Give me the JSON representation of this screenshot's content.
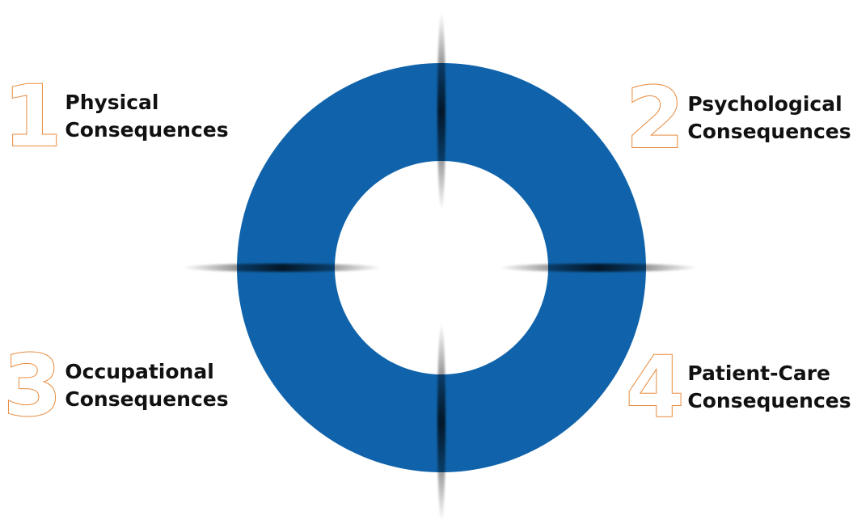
{
  "accent_color": "#e8893a",
  "ring_color": "#1063aa",
  "quadrants": [
    {
      "number": "1",
      "line1": "Physical",
      "line2": "Consequences"
    },
    {
      "number": "2",
      "line1": "Psychological",
      "line2": "Consequences"
    },
    {
      "number": "3",
      "line1": "Occupational",
      "line2": "Consequences"
    },
    {
      "number": "4",
      "line1": "Patient-Care",
      "line2": "Consequences"
    }
  ]
}
